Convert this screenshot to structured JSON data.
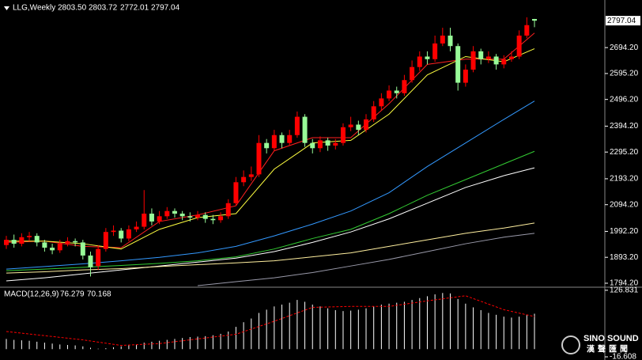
{
  "chart_data": [
    {
      "type": "candlestick",
      "header": {
        "symbol": "LLG,Weekly",
        "ohlc": [
          "2803.50",
          "2803.72",
          "2772.01",
          "2797.04"
        ]
      },
      "open": [
        1940,
        1960,
        1945,
        1970,
        1975,
        1950,
        1930,
        1920,
        1945,
        1955,
        1950,
        1900,
        1860,
        1925,
        1990,
        1995,
        1965,
        2000,
        2010,
        2060,
        2030,
        2050,
        2070,
        2060,
        2050,
        2045,
        2055,
        2040,
        2035,
        2050,
        2100,
        2180,
        2200,
        2210,
        2330,
        2310,
        2360,
        2330,
        2360,
        2430,
        2330,
        2310,
        2340,
        2320,
        2330,
        2390,
        2400,
        2380,
        2420,
        2470,
        2500,
        2530,
        2520,
        2570,
        2620,
        2660,
        2650,
        2710,
        2740,
        2700,
        2560,
        2610,
        2680,
        2650,
        2660,
        2630,
        2650,
        2660,
        2740,
        2803.5
      ],
      "high": [
        1975,
        1980,
        1985,
        1990,
        1985,
        1960,
        1945,
        1960,
        1970,
        1965,
        1960,
        1915,
        1940,
        2005,
        2015,
        2005,
        2015,
        2030,
        2150,
        2080,
        2070,
        2085,
        2080,
        2070,
        2065,
        2070,
        2065,
        2055,
        2065,
        2115,
        2200,
        2225,
        2240,
        2360,
        2345,
        2380,
        2370,
        2380,
        2450,
        2440,
        2345,
        2355,
        2350,
        2345,
        2405,
        2430,
        2415,
        2440,
        2490,
        2520,
        2550,
        2545,
        2590,
        2645,
        2680,
        2680,
        2740,
        2770,
        2770,
        2710,
        2630,
        2700,
        2690,
        2680,
        2670,
        2665,
        2680,
        2760,
        2810,
        2803.72
      ],
      "low": [
        1925,
        1930,
        1935,
        1955,
        1935,
        1915,
        1905,
        1910,
        1935,
        1935,
        1885,
        1820,
        1845,
        1915,
        1975,
        1950,
        1955,
        1990,
        2000,
        2015,
        2020,
        2040,
        2045,
        2035,
        2030,
        2035,
        2025,
        2020,
        2025,
        2040,
        2090,
        2165,
        2185,
        2200,
        2290,
        2300,
        2310,
        2320,
        2350,
        2315,
        2290,
        2295,
        2300,
        2305,
        2320,
        2375,
        2360,
        2370,
        2410,
        2455,
        2490,
        2500,
        2510,
        2560,
        2605,
        2630,
        2640,
        2700,
        2680,
        2530,
        2545,
        2600,
        2630,
        2635,
        2610,
        2615,
        2640,
        2650,
        2730,
        2772.01
      ],
      "close": [
        1960,
        1945,
        1970,
        1975,
        1950,
        1930,
        1920,
        1945,
        1955,
        1950,
        1900,
        1855,
        1925,
        1990,
        1995,
        1965,
        2000,
        2010,
        2060,
        2030,
        2050,
        2070,
        2060,
        2050,
        2045,
        2055,
        2040,
        2035,
        2050,
        2100,
        2180,
        2200,
        2210,
        2330,
        2310,
        2360,
        2330,
        2360,
        2430,
        2330,
        2310,
        2340,
        2320,
        2330,
        2390,
        2400,
        2380,
        2420,
        2470,
        2500,
        2530,
        2520,
        2570,
        2620,
        2660,
        2650,
        2710,
        2740,
        2700,
        2560,
        2610,
        2680,
        2650,
        2660,
        2630,
        2650,
        2660,
        2740,
        2780,
        2797.04
      ],
      "up_color": "#ff0000",
      "down_color": "#98fb98",
      "ylim": [
        1782,
        2876
      ],
      "yticks": [
        {
          "value": 2694.2,
          "label": "2694.20"
        },
        {
          "value": 2595.2,
          "label": "2595.20"
        },
        {
          "value": 2496.2,
          "label": "2496.20"
        },
        {
          "value": 2394.2,
          "label": "2394.20"
        },
        {
          "value": 2295.2,
          "label": "2295.20"
        },
        {
          "value": 2193.2,
          "label": "2193.20"
        },
        {
          "value": 2094.2,
          "label": "2094.20"
        },
        {
          "value": 1992.2,
          "label": "1992.20"
        },
        {
          "value": 1893.2,
          "label": "1893.20"
        },
        {
          "value": 1794.2,
          "label": "1794.20"
        }
      ],
      "overlays": [
        {
          "color": "#ff2020",
          "x": [
            0,
            5,
            10,
            15,
            20,
            25,
            30,
            35,
            40,
            45,
            50,
            55,
            60,
            65,
            69
          ],
          "values": [
            1950,
            1955,
            1935,
            1930,
            2030,
            2055,
            2090,
            2300,
            2350,
            2350,
            2480,
            2630,
            2650,
            2650,
            2750
          ]
        },
        {
          "color": "#ffff40",
          "x": [
            0,
            5,
            10,
            15,
            20,
            25,
            30,
            35,
            40,
            45,
            50,
            55,
            60,
            65,
            69
          ],
          "values": [
            1955,
            1955,
            1945,
            1925,
            2000,
            2045,
            2060,
            2230,
            2330,
            2340,
            2440,
            2590,
            2660,
            2640,
            2690
          ]
        },
        {
          "color": "#3399ff",
          "x": [
            0,
            5,
            10,
            15,
            20,
            25,
            30,
            35,
            40,
            45,
            50,
            55,
            60,
            65,
            69
          ],
          "values": [
            1848,
            1858,
            1868,
            1880,
            1893,
            1910,
            1935,
            1975,
            2020,
            2070,
            2140,
            2240,
            2330,
            2420,
            2490
          ]
        },
        {
          "color": "#33cc33",
          "x": [
            0,
            5,
            10,
            15,
            20,
            25,
            30,
            35,
            40,
            45,
            50,
            55,
            60,
            65,
            69
          ],
          "values": [
            1842,
            1848,
            1855,
            1862,
            1870,
            1880,
            1895,
            1925,
            1965,
            2000,
            2060,
            2130,
            2190,
            2250,
            2298
          ]
        },
        {
          "color": "#ffffff",
          "x": [
            0,
            5,
            10,
            15,
            20,
            25,
            30,
            35,
            40,
            45,
            50,
            55,
            60,
            65,
            69
          ],
          "values": [
            1803,
            1815,
            1830,
            1845,
            1860,
            1875,
            1890,
            1915,
            1950,
            1990,
            2040,
            2100,
            2160,
            2205,
            2235
          ]
        },
        {
          "color": "#ffef9f",
          "x": [
            0,
            5,
            10,
            15,
            20,
            25,
            30,
            35,
            40,
            45,
            50,
            55,
            60,
            65,
            69
          ],
          "values": [
            1833,
            1838,
            1845,
            1850,
            1858,
            1865,
            1872,
            1880,
            1895,
            1910,
            1935,
            1960,
            1985,
            2005,
            2024
          ]
        },
        {
          "color": "#9a9aaa",
          "x": [
            25,
            30,
            35,
            40,
            45,
            50,
            55,
            60,
            65,
            69
          ],
          "values": [
            1785,
            1800,
            1815,
            1835,
            1860,
            1885,
            1915,
            1945,
            1970,
            1985
          ]
        }
      ]
    },
    {
      "type": "macd",
      "title": "MACD(12,26,9)",
      "histogram": [
        22,
        20,
        19,
        18,
        16,
        14,
        12,
        10,
        9,
        8,
        6,
        3,
        1,
        2,
        4,
        6,
        8,
        10,
        14,
        16,
        18,
        20,
        22,
        24,
        26,
        27,
        28,
        30,
        33,
        38,
        48,
        58,
        66,
        78,
        85,
        92,
        96,
        100,
        106,
        102,
        96,
        92,
        88,
        84,
        82,
        83,
        85,
        88,
        92,
        96,
        98,
        100,
        102,
        106,
        110,
        114,
        118,
        121,
        120,
        108,
        98,
        90,
        84,
        78,
        74,
        70,
        68,
        70,
        74,
        76.279
      ],
      "histogram_color": "#ffffff",
      "signal": {
        "color": "#ff0000",
        "x": [
          0,
          10,
          15,
          20,
          25,
          30,
          35,
          40,
          45,
          50,
          55,
          60,
          65,
          69
        ],
        "values": [
          38,
          20,
          8,
          12,
          22,
          32,
          60,
          90,
          92,
          92,
          104,
          115,
          85,
          70.168
        ]
      },
      "ylim": [
        -20,
        130
      ],
      "yticks": [
        126.831,
        -16.608
      ]
    }
  ],
  "watermark": {
    "brand": "SINO SOUND",
    "chinese": "漢聲匯聞"
  }
}
